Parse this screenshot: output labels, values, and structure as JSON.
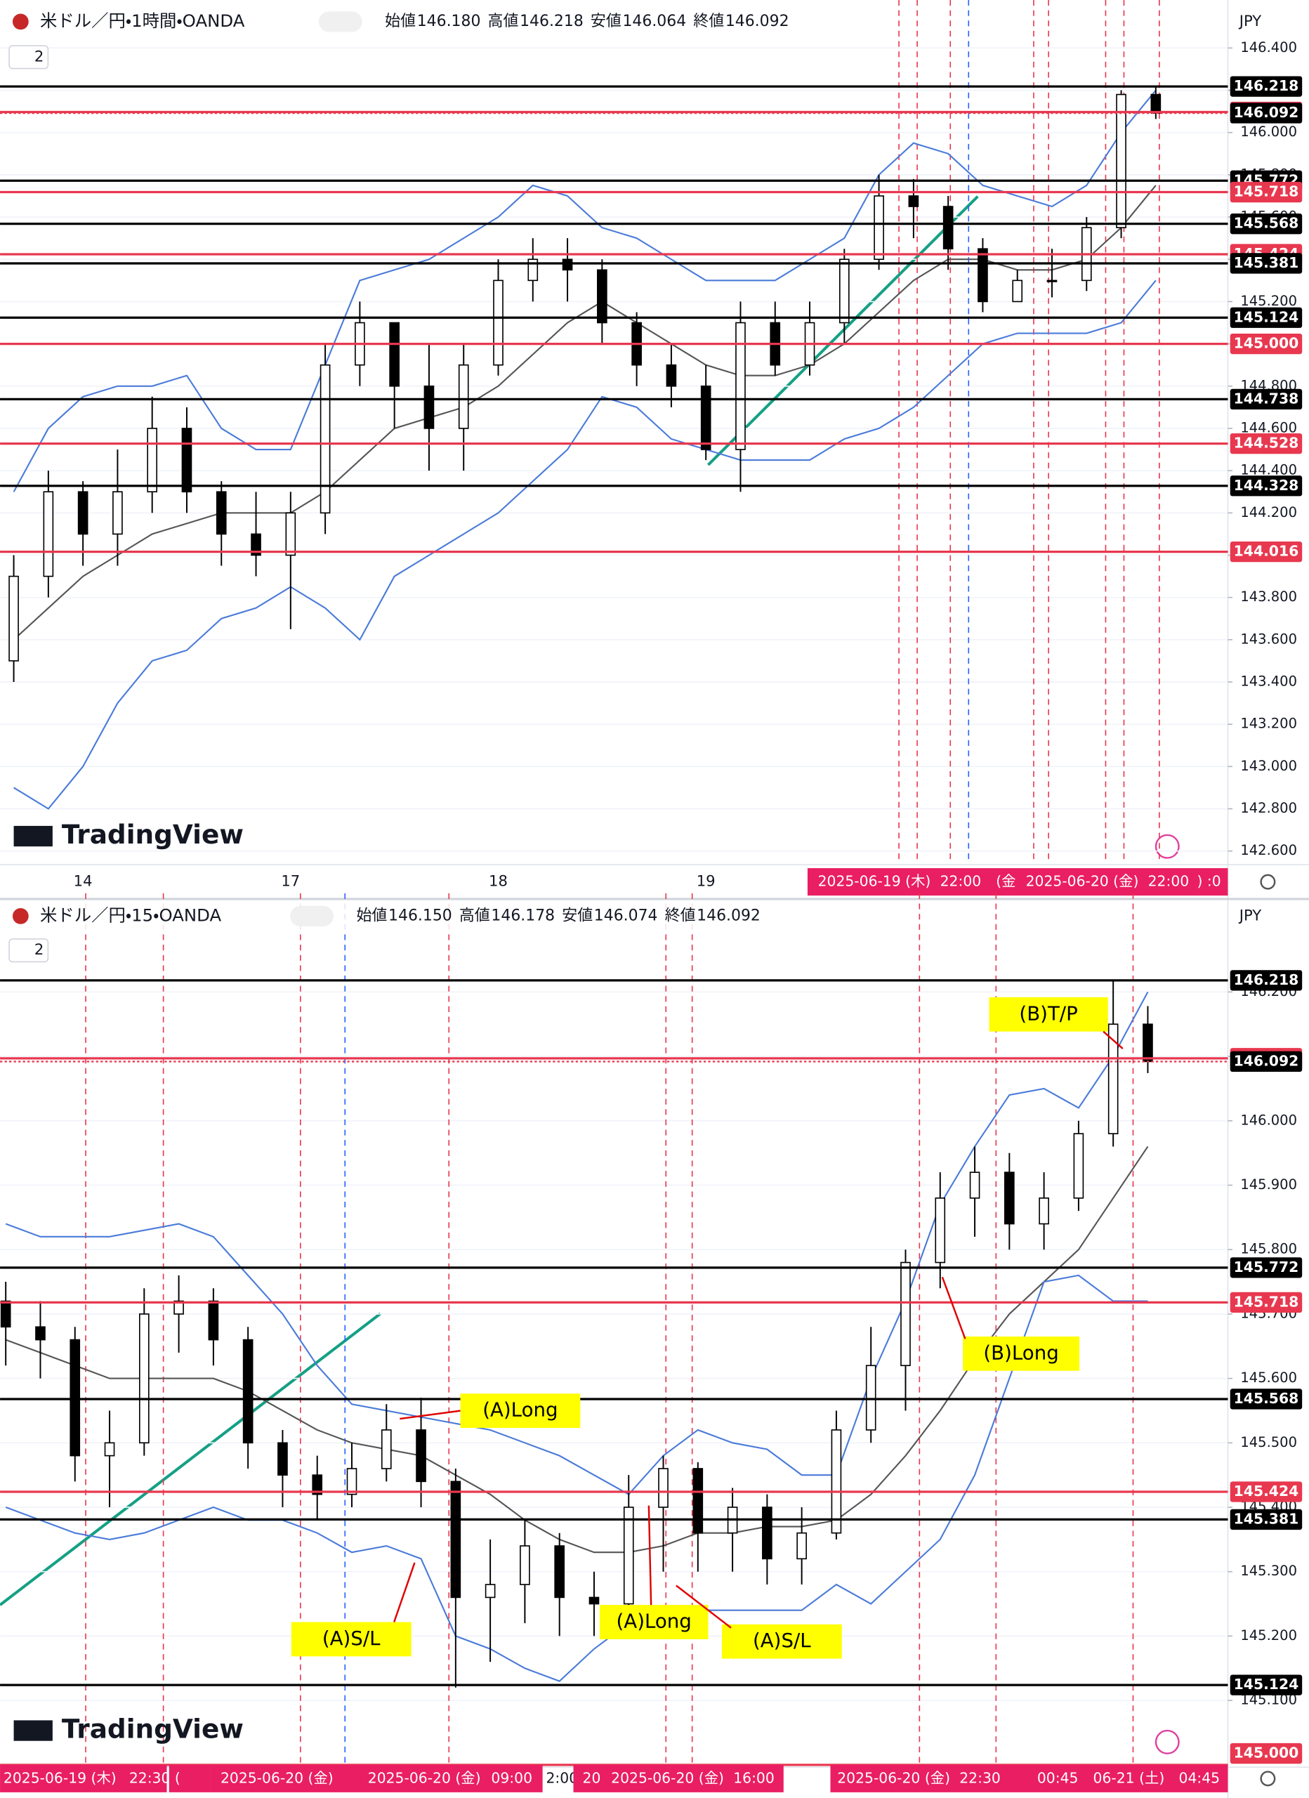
{
  "chart_data": [
    {
      "type": "candlestick",
      "title": "米ドル／円・1時間・OANDA",
      "ohlc_labels": [
        "始値",
        "高値",
        "安値",
        "終値"
      ],
      "ohlc_values": [
        "146.180",
        "146.218",
        "146.064",
        "146.092"
      ],
      "pane_label": "2",
      "currency": "JPY",
      "watermark": "TradingView",
      "up_color": "#ffffff",
      "down_color": "#000000",
      "categories": [
        null,
        null,
        "14",
        null,
        null,
        null,
        null,
        null,
        "17",
        null,
        null,
        null,
        null,
        null,
        "18",
        null,
        null,
        null,
        null,
        null,
        "19",
        null,
        null,
        null,
        null,
        null,
        null,
        null,
        null,
        null,
        null,
        null,
        null,
        null
      ],
      "open": [
        143.5,
        143.9,
        144.3,
        144.1,
        144.3,
        144.6,
        144.3,
        144.1,
        144.0,
        144.2,
        144.9,
        145.1,
        144.8,
        144.6,
        144.9,
        145.3,
        145.4,
        145.35,
        145.1,
        144.9,
        144.8,
        144.5,
        145.1,
        144.9,
        145.1,
        145.4,
        145.7,
        145.65,
        145.45,
        145.2,
        145.3,
        145.3,
        145.55,
        146.18
      ],
      "high": [
        144.0,
        144.4,
        144.35,
        144.5,
        144.75,
        144.7,
        144.35,
        144.3,
        144.3,
        145.0,
        145.2,
        145.1,
        145.0,
        145.0,
        145.4,
        145.5,
        145.5,
        145.4,
        145.15,
        145.0,
        144.9,
        145.2,
        145.2,
        145.2,
        145.45,
        145.8,
        145.78,
        145.7,
        145.5,
        145.35,
        145.45,
        145.6,
        146.2,
        146.218
      ],
      "low": [
        143.4,
        143.8,
        143.95,
        143.95,
        144.2,
        144.2,
        143.95,
        143.9,
        143.65,
        144.1,
        144.8,
        144.6,
        144.4,
        144.4,
        144.85,
        145.2,
        145.2,
        145.0,
        144.8,
        144.7,
        144.45,
        144.3,
        144.85,
        144.85,
        145.0,
        145.35,
        145.5,
        145.35,
        145.15,
        145.2,
        145.22,
        145.25,
        145.5,
        146.064
      ],
      "close": [
        143.9,
        144.3,
        144.1,
        144.3,
        144.6,
        144.3,
        144.1,
        144.0,
        144.2,
        144.9,
        145.1,
        144.8,
        144.6,
        144.9,
        145.3,
        145.4,
        145.35,
        145.1,
        144.9,
        144.8,
        144.5,
        145.1,
        144.9,
        145.1,
        145.4,
        145.7,
        145.65,
        145.45,
        145.2,
        145.3,
        145.3,
        145.55,
        146.18,
        146.092
      ],
      "series": [
        {
          "color": "#555555",
          "values": [
            143.6,
            143.75,
            143.9,
            144.0,
            144.1,
            144.15,
            144.2,
            144.2,
            144.2,
            144.3,
            144.45,
            144.6,
            144.65,
            144.7,
            144.8,
            144.95,
            145.1,
            145.2,
            145.1,
            145.0,
            144.9,
            144.85,
            144.85,
            144.9,
            145.0,
            145.15,
            145.3,
            145.4,
            145.4,
            145.35,
            145.35,
            145.4,
            145.55,
            145.75
          ]
        },
        {
          "color": "#4a7bd9",
          "values": [
            144.3,
            144.6,
            144.75,
            144.8,
            144.8,
            144.85,
            144.6,
            144.5,
            144.5,
            144.9,
            145.3,
            145.35,
            145.4,
            145.5,
            145.6,
            145.75,
            145.7,
            145.55,
            145.5,
            145.4,
            145.3,
            145.3,
            145.3,
            145.4,
            145.5,
            145.8,
            145.95,
            145.9,
            145.75,
            145.7,
            145.65,
            145.75,
            146.0,
            146.2
          ]
        },
        {
          "color": "#4a7bd9",
          "values": [
            142.9,
            142.8,
            143.0,
            143.3,
            143.5,
            143.55,
            143.7,
            143.75,
            143.85,
            143.75,
            143.6,
            143.9,
            144.0,
            144.1,
            144.2,
            144.35,
            144.5,
            144.75,
            144.7,
            144.55,
            144.5,
            144.45,
            144.45,
            144.45,
            144.55,
            144.6,
            144.7,
            144.85,
            145.0,
            145.05,
            145.05,
            145.05,
            145.1,
            145.3
          ]
        }
      ],
      "ylim": [
        142.546,
        146.465
      ],
      "yticks": [
        {
          "value": 142.6,
          "label": "142.600"
        },
        {
          "value": 142.8,
          "label": "142.800"
        },
        {
          "value": 143.0,
          "label": "143.000"
        },
        {
          "value": 143.2,
          "label": "143.200"
        },
        {
          "value": 143.4,
          "label": "143.400"
        },
        {
          "value": 143.6,
          "label": "143.600"
        },
        {
          "value": 143.8,
          "label": "143.800"
        },
        {
          "value": 144.0,
          "label": "144.000"
        },
        {
          "value": 144.2,
          "label": "144.200"
        },
        {
          "value": 144.4,
          "label": "144.400"
        },
        {
          "value": 144.6,
          "label": "144.600"
        },
        {
          "value": 144.8,
          "label": "144.800"
        },
        {
          "value": 145.0,
          "label": "145.000"
        },
        {
          "value": 145.2,
          "label": "145.200"
        },
        {
          "value": 145.4,
          "label": "145.400"
        },
        {
          "value": 145.6,
          "label": "145.600"
        },
        {
          "value": 145.8,
          "label": "145.800"
        },
        {
          "value": 146.0,
          "label": "146.000"
        },
        {
          "value": 146.2,
          "label": "146.200"
        },
        {
          "value": 146.4,
          "label": "146.400"
        }
      ],
      "levels": [
        {
          "value": 146.218,
          "color": "#000000",
          "label_bg": "#000000"
        },
        {
          "value": 146.097,
          "color": "#e8384f",
          "label_bg": "#e8384f"
        },
        {
          "value": 146.092,
          "color": "#e8384f",
          "label_bg": "#000000",
          "style": "dotted"
        },
        {
          "value": 145.772,
          "color": "#000000",
          "label_bg": "#000000"
        },
        {
          "value": 145.718,
          "color": "#e8384f",
          "label_bg": "#e8384f"
        },
        {
          "value": 145.568,
          "color": "#000000",
          "label_bg": "#000000"
        },
        {
          "value": 145.424,
          "color": "#e8384f",
          "label_bg": "#e8384f"
        },
        {
          "value": 145.381,
          "color": "#000000",
          "label_bg": "#000000"
        },
        {
          "value": 145.124,
          "color": "#000000",
          "label_bg": "#000000"
        },
        {
          "value": 145.0,
          "label": "145.000",
          "color": "#e8384f",
          "label_bg": "#e8384f"
        },
        {
          "value": 144.738,
          "color": "#000000",
          "label_bg": "#000000"
        },
        {
          "value": 144.528,
          "color": "#e8384f",
          "label_bg": "#e8384f"
        },
        {
          "value": 144.328,
          "color": "#000000",
          "label_bg": "#000000"
        },
        {
          "value": 144.016,
          "color": "#e8384f",
          "label_bg": "#e8384f"
        }
      ],
      "time_labels": [
        "2025-06-19 (木)",
        "22:00",
        "(金",
        "2025-06-20 (金)",
        "22:00",
        ") :0"
      ]
    },
    {
      "type": "candlestick",
      "title": "米ドル／円・15・OANDA",
      "ohlc_labels": [
        "始値",
        "高値",
        "安値",
        "終値"
      ],
      "ohlc_values": [
        "146.150",
        "146.178",
        "146.074",
        "146.092"
      ],
      "pane_label": "2",
      "currency": "JPY",
      "watermark": "TradingView",
      "up_color": "#ffffff",
      "down_color": "#000000",
      "open": [
        145.72,
        145.68,
        145.66,
        145.48,
        145.5,
        145.7,
        145.72,
        145.66,
        145.5,
        145.45,
        145.42,
        145.46,
        145.52,
        145.44,
        145.26,
        145.28,
        145.34,
        145.26,
        145.25,
        145.4,
        145.46,
        145.36,
        145.4,
        145.32,
        145.36,
        145.52,
        145.62,
        145.78,
        145.88,
        145.92,
        145.84,
        145.88,
        145.98,
        146.15
      ],
      "high": [
        145.75,
        145.72,
        145.68,
        145.55,
        145.74,
        145.76,
        145.74,
        145.68,
        145.52,
        145.48,
        145.5,
        145.56,
        145.57,
        145.46,
        145.35,
        145.38,
        145.36,
        145.3,
        145.45,
        145.48,
        145.47,
        145.43,
        145.42,
        145.4,
        145.55,
        145.68,
        145.8,
        145.92,
        145.96,
        145.95,
        145.92,
        146.0,
        146.218,
        146.178
      ],
      "low": [
        145.62,
        145.6,
        145.44,
        145.4,
        145.48,
        145.64,
        145.62,
        145.46,
        145.4,
        145.38,
        145.4,
        145.44,
        145.4,
        145.12,
        145.16,
        145.22,
        145.2,
        145.2,
        145.22,
        145.3,
        145.3,
        145.3,
        145.28,
        145.28,
        145.35,
        145.5,
        145.55,
        145.74,
        145.82,
        145.8,
        145.8,
        145.86,
        145.96,
        146.074
      ],
      "close": [
        145.68,
        145.66,
        145.48,
        145.5,
        145.7,
        145.72,
        145.66,
        145.5,
        145.45,
        145.42,
        145.46,
        145.52,
        145.44,
        145.26,
        145.28,
        145.34,
        145.26,
        145.25,
        145.4,
        145.46,
        145.36,
        145.4,
        145.32,
        145.36,
        145.52,
        145.62,
        145.78,
        145.88,
        145.92,
        145.84,
        145.88,
        145.98,
        146.15,
        146.092
      ],
      "series": [
        {
          "color": "#555555",
          "values": [
            145.66,
            145.64,
            145.62,
            145.6,
            145.6,
            145.6,
            145.6,
            145.58,
            145.55,
            145.52,
            145.5,
            145.49,
            145.48,
            145.45,
            145.42,
            145.38,
            145.35,
            145.33,
            145.33,
            145.34,
            145.36,
            145.36,
            145.37,
            145.37,
            145.38,
            145.42,
            145.48,
            145.55,
            145.63,
            145.7,
            145.75,
            145.8,
            145.88,
            145.96
          ]
        },
        {
          "color": "#4a7bd9",
          "values": [
            145.84,
            145.82,
            145.82,
            145.82,
            145.83,
            145.84,
            145.82,
            145.76,
            145.7,
            145.62,
            145.56,
            145.55,
            145.54,
            145.53,
            145.52,
            145.5,
            145.48,
            145.45,
            145.42,
            145.48,
            145.52,
            145.5,
            145.49,
            145.45,
            145.45,
            145.6,
            145.72,
            145.87,
            145.96,
            146.04,
            146.05,
            146.02,
            146.1,
            146.2
          ]
        },
        {
          "color": "#4a7bd9",
          "values": [
            145.4,
            145.38,
            145.36,
            145.35,
            145.36,
            145.38,
            145.4,
            145.38,
            145.38,
            145.36,
            145.33,
            145.34,
            145.32,
            145.2,
            145.18,
            145.15,
            145.13,
            145.18,
            145.22,
            145.22,
            145.24,
            145.24,
            145.24,
            145.24,
            145.28,
            145.25,
            145.3,
            145.35,
            145.45,
            145.6,
            145.75,
            145.76,
            145.72,
            145.72
          ]
        }
      ],
      "ylim": [
        145.0,
        146.3
      ],
      "yticks": [
        {
          "value": 145.1,
          "label": "145.100"
        },
        {
          "value": 145.2,
          "label": "145.200"
        },
        {
          "value": 145.3,
          "label": "145.300"
        },
        {
          "value": 145.4,
          "label": "145.400"
        },
        {
          "value": 145.5,
          "label": "145.500"
        },
        {
          "value": 145.6,
          "label": "145.600"
        },
        {
          "value": 145.7,
          "label": "145.700"
        },
        {
          "value": 145.8,
          "label": "145.800"
        },
        {
          "value": 145.9,
          "label": "145.900"
        },
        {
          "value": 146.0,
          "label": "146.000"
        },
        {
          "value": 146.1,
          "label": "146.100"
        },
        {
          "value": 146.2,
          "label": "146.200"
        }
      ],
      "levels": [
        {
          "value": 146.218,
          "color": "#000000",
          "label_bg": "#000000"
        },
        {
          "value": 146.097,
          "color": "#e8384f",
          "label_bg": "#e8384f"
        },
        {
          "value": 146.092,
          "color": "#e8384f",
          "label_bg": "#000000",
          "style": "dotted"
        },
        {
          "value": 145.772,
          "color": "#000000",
          "label_bg": "#000000"
        },
        {
          "value": 145.718,
          "color": "#e8384f",
          "label_bg": "#e8384f"
        },
        {
          "value": 145.568,
          "color": "#000000",
          "label_bg": "#000000"
        },
        {
          "value": 145.424,
          "color": "#e8384f",
          "label_bg": "#e8384f"
        },
        {
          "value": 145.381,
          "color": "#000000",
          "label_bg": "#000000"
        },
        {
          "value": 145.124,
          "color": "#000000",
          "label_bg": "#000000"
        },
        {
          "value": 145.0,
          "label": "145.000",
          "color": "#e8384f",
          "label_bg": "#e8384f"
        }
      ],
      "time_labels": [
        "2025-06-19 (木)",
        "22:30",
        "(",
        "2025-06-20 (金)",
        "2025-06-20 (金)",
        "09:00",
        "2:00",
        "20",
        "2025-06-20 (金)",
        "16:00",
        "2025-06-20 (金)",
        "22:30",
        "00:45",
        "06-21 (土)",
        "04:45"
      ],
      "annotations": [
        "(A)Long",
        "(A)S/L",
        "(A)Long",
        "(A)S/L",
        "(B)Long",
        "(B)T/P"
      ]
    }
  ]
}
